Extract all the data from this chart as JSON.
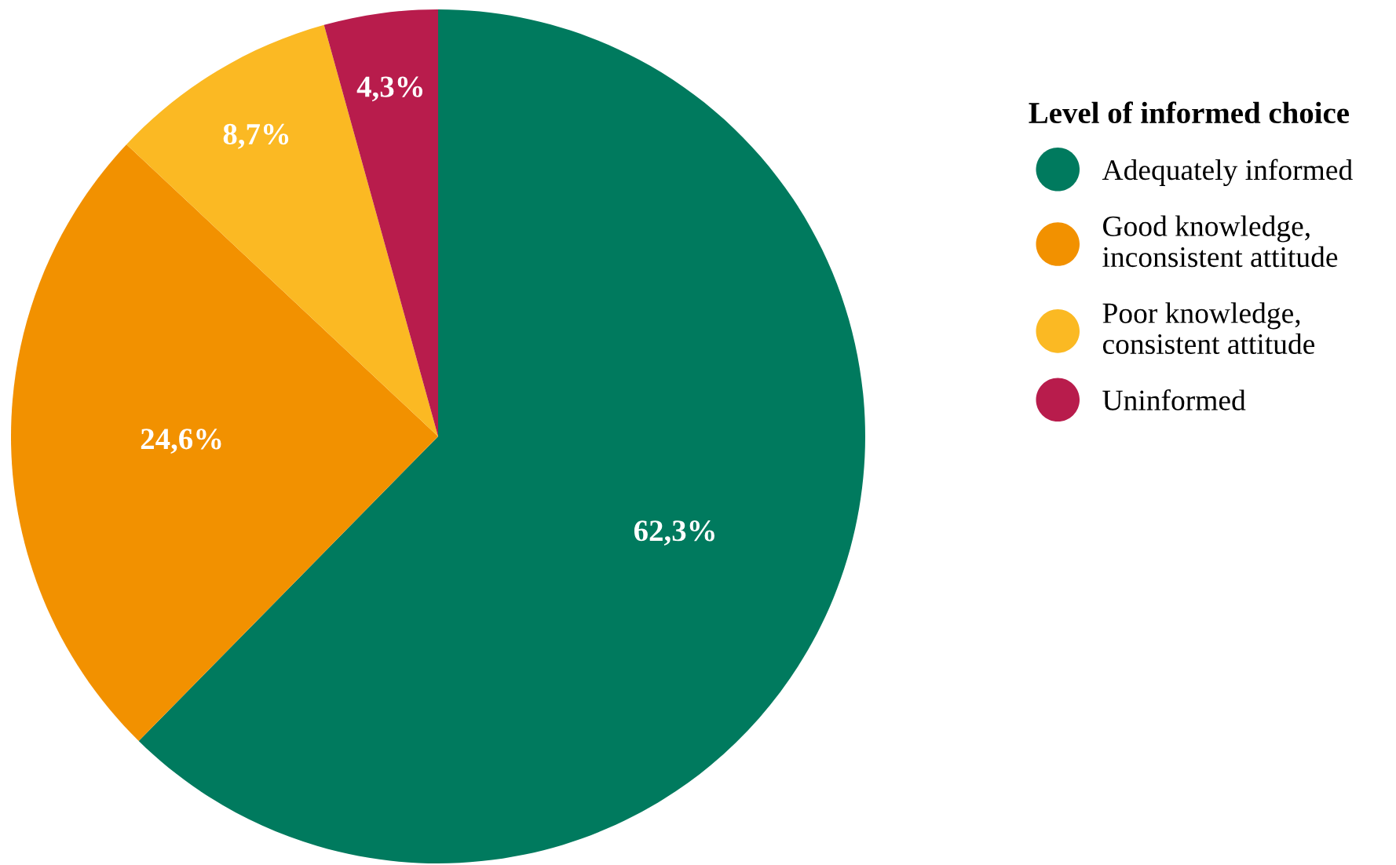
{
  "chart_data": {
    "type": "pie",
    "legend_title": "Level of informed choice",
    "categories": [
      "Adequately informed",
      "Good knowledge,\ninconsistent attitude",
      "Poor knowledge,\nconsistent attitude",
      "Uninformed"
    ],
    "values": [
      62.3,
      24.6,
      8.7,
      4.3
    ],
    "colors": [
      "#007a5e",
      "#f29100",
      "#fbb923",
      "#b81c4c"
    ],
    "value_labels": [
      "62,3%",
      "24,6%",
      "8,7%",
      "4,3%"
    ],
    "legend": "right"
  }
}
